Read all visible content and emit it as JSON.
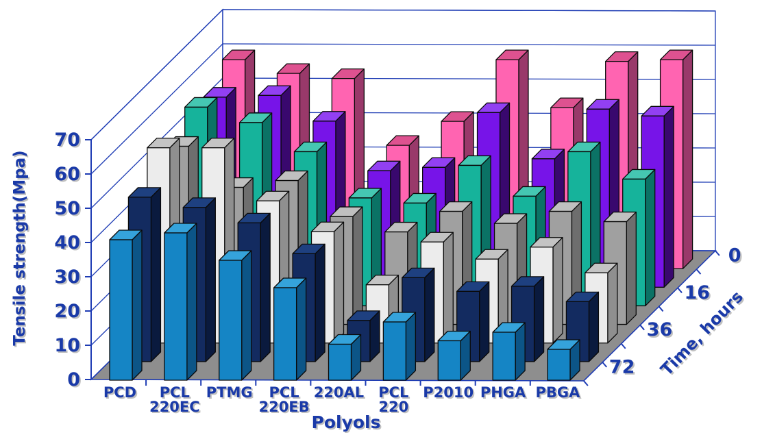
{
  "chart_data": {
    "type": "bar",
    "subtype": "3d-column",
    "title": "",
    "xlabel": "Polyols",
    "ylabel": "Tensile strength(Mpa)",
    "zlabel": "Time, hours",
    "ylim": [
      0,
      70
    ],
    "y_ticks": [
      0,
      10,
      20,
      30,
      40,
      50,
      60,
      70
    ],
    "grid": true,
    "legend_position": "none",
    "categories": [
      "PCD",
      "PCL 220EC",
      "PTMG",
      "PCL 220EB",
      "220AL",
      "PCL 220",
      "P2010",
      "PHGA",
      "PBGA"
    ],
    "category_lines": [
      [
        "PCD"
      ],
      [
        "PCL",
        "220EC"
      ],
      [
        "PTMG"
      ],
      [
        "PCL",
        "220EB"
      ],
      [
        "220AL"
      ],
      [
        "PCL",
        "220"
      ],
      [
        "P2010"
      ],
      [
        "PHGA"
      ],
      [
        "PBGA"
      ]
    ],
    "depth_axis_visible_labels": [
      "72",
      "36",
      "16",
      "0"
    ],
    "depth_order": "front-to-back",
    "series": [
      {
        "label": "72",
        "values": [
          41,
          43,
          35,
          27,
          10.5,
          17,
          11.5,
          14,
          9
        ],
        "color_front": "#1585C5",
        "color_top": "#35A3DB",
        "color_side": "#0C5587"
      },
      {
        "label": "",
        "values": [
          48,
          45,
          40.5,
          31.5,
          12,
          24.5,
          20.5,
          22,
          17.5
        ],
        "color_front": "#132B60",
        "color_top": "#1E4080",
        "color_side": "#0A1A3E"
      },
      {
        "label": "36",
        "values": [
          57,
          57,
          41.5,
          32.5,
          17,
          29.5,
          24.5,
          28,
          20.5
        ],
        "color_front": "#ECECEC",
        "color_top": "#C4C4C4",
        "color_side": "#8F8F8F"
      },
      {
        "label": "",
        "values": [
          52,
          40,
          42,
          31.5,
          27,
          33,
          29.5,
          33,
          30
        ],
        "color_front": "#A0A0A0",
        "color_top": "#C0C0C0",
        "color_side": "#6E6E6E"
      },
      {
        "label": "16",
        "values": [
          58,
          53.5,
          45,
          31.5,
          30,
          41,
          32,
          45,
          37
        ],
        "color_front": "#16B39B",
        "color_top": "#45C7B2",
        "color_side": "#0B7265"
      },
      {
        "label": "",
        "values": [
          55.5,
          56,
          48.5,
          34,
          35,
          51,
          37.5,
          52,
          50
        ],
        "color_front": "#7714E8",
        "color_top": "#9240F2",
        "color_side": "#39086E"
      },
      {
        "label": "0",
        "values": [
          61,
          57,
          55.5,
          36,
          43,
          61,
          47,
          60.5,
          61
        ],
        "color_front": "#FF64B1",
        "color_top": "#DE5290",
        "color_side": "#99396A"
      }
    ]
  },
  "style": {
    "line_color": "#1E3CB4",
    "label_color": "#1A3AA8",
    "shadow_color": "#C0C0C0",
    "floor_color": "#8E8E8E",
    "bar_stroke": "#0A0A0A",
    "wall_color": "#FFFFFF"
  },
  "geometry_note": "isometric 3D chart, 9 categories x 7 depth rows, only alternate depth rows carry tick labels"
}
